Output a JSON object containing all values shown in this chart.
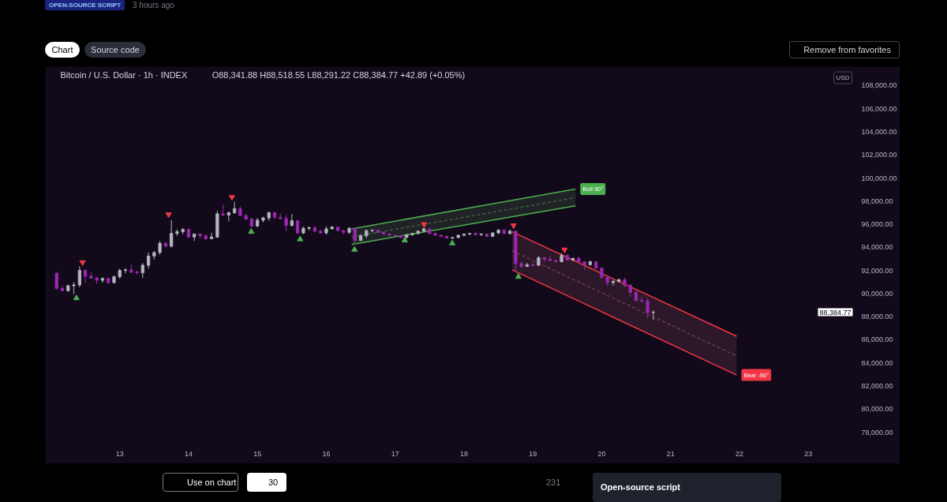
{
  "chart_data": {
    "type": "candlestick",
    "title": "Bitcoin / U.S. Dollar · 1h · INDEX",
    "subtitle": "O88,341.88 H88,518.55 L88,291.22 C88,384.77 +42.89 (+0.05%)",
    "xlim": [
      11.92,
      23.68
    ],
    "ylim": [
      76770,
      109640
    ],
    "xticks": [
      13,
      14,
      15,
      16,
      17,
      18,
      19,
      20,
      21,
      22,
      23
    ],
    "yticks": [
      {
        "value": 78000,
        "label": "78,000.00"
      },
      {
        "value": 80000,
        "label": "80,000.00"
      },
      {
        "value": 82000,
        "label": "82,000.00"
      },
      {
        "value": 84000,
        "label": "84,000.00"
      },
      {
        "value": 86000,
        "label": "86,000.00"
      },
      {
        "value": 88000,
        "label": "88,000.00"
      },
      {
        "value": 90000,
        "label": "90,000.00"
      },
      {
        "value": 92000,
        "label": "92,000.00"
      },
      {
        "value": 94000,
        "label": "94,000.00"
      },
      {
        "value": 96000,
        "label": "96,000.00"
      },
      {
        "value": 98000,
        "label": "98,000.00"
      },
      {
        "value": 100000,
        "label": "100,000.00"
      },
      {
        "value": 102000,
        "label": "102,000.00"
      },
      {
        "value": 104000,
        "label": "104,000.00"
      },
      {
        "value": 106000,
        "label": "106,000.00"
      },
      {
        "value": 108000,
        "label": "108,000.00"
      }
    ],
    "x": [
      12.083,
      12.167,
      12.25,
      12.333,
      12.417,
      12.5,
      12.583,
      12.667,
      12.75,
      12.833,
      12.917,
      13,
      13.083,
      13.167,
      13.25,
      13.333,
      13.417,
      13.5,
      13.583,
      13.667,
      13.75,
      13.833,
      13.917,
      14,
      14.083,
      14.167,
      14.25,
      14.333,
      14.417,
      14.5,
      14.583,
      14.667,
      14.75,
      14.833,
      14.917,
      15,
      15.083,
      15.167,
      15.25,
      15.333,
      15.417,
      15.5,
      15.583,
      15.667,
      15.75,
      15.833,
      15.917,
      16,
      16.083,
      16.167,
      16.25,
      16.333,
      16.417,
      16.5,
      16.583,
      16.667,
      16.75,
      16.833,
      16.917,
      17,
      17.083,
      17.167,
      17.25,
      17.333,
      17.417,
      17.5,
      17.583,
      17.667,
      17.75,
      17.833,
      17.917,
      18,
      18.083,
      18.167,
      18.25,
      18.333,
      18.417,
      18.5,
      18.583,
      18.667,
      18.75,
      18.833,
      18.917,
      19,
      19.083,
      19.167,
      19.25,
      19.333,
      19.417,
      19.5,
      19.583,
      19.667,
      19.75,
      19.833,
      19.917,
      20,
      20.083,
      20.167,
      20.25,
      20.333,
      20.417,
      20.5,
      20.583,
      20.667,
      20.75
    ],
    "ohlc": [
      [
        91750,
        91900,
        90330,
        90450
      ],
      [
        90450,
        90650,
        90200,
        90250
      ],
      [
        90250,
        90750,
        90150,
        90680
      ],
      [
        90680,
        91000,
        89950,
        90750
      ],
      [
        90750,
        92350,
        90550,
        92000
      ],
      [
        92000,
        92100,
        90900,
        91500
      ],
      [
        91500,
        91850,
        91250,
        91350
      ],
      [
        91350,
        91450,
        90850,
        91150
      ],
      [
        91150,
        91400,
        90950,
        91300
      ],
      [
        91300,
        91400,
        90850,
        90950
      ],
      [
        90950,
        91550,
        90850,
        91450
      ],
      [
        91450,
        92150,
        91300,
        92000
      ],
      [
        92000,
        92200,
        91750,
        92050
      ],
      [
        92050,
        92500,
        91800,
        91850
      ],
      [
        91850,
        92000,
        91650,
        91800
      ],
      [
        91800,
        92650,
        91350,
        92450
      ],
      [
        92450,
        93550,
        92150,
        93250
      ],
      [
        93250,
        93700,
        92950,
        93550
      ],
      [
        93550,
        94550,
        93350,
        94350
      ],
      [
        94350,
        94450,
        93950,
        94100
      ],
      [
        94100,
        96350,
        94000,
        95200
      ],
      [
        95200,
        95550,
        95000,
        95350
      ],
      [
        95350,
        95650,
        95150,
        95550
      ],
      [
        95550,
        95650,
        94800,
        94900
      ],
      [
        94900,
        95200,
        94550,
        95150
      ],
      [
        95150,
        95200,
        94750,
        95000
      ],
      [
        95000,
        95100,
        94650,
        94750
      ],
      [
        94750,
        95250,
        94700,
        94900
      ],
      [
        94900,
        97150,
        94800,
        96900
      ],
      [
        96900,
        97700,
        96700,
        96800
      ],
      [
        96800,
        97100,
        96250,
        97000
      ],
      [
        97000,
        97950,
        96900,
        97350
      ],
      [
        97350,
        97550,
        96700,
        96750
      ],
      [
        96750,
        96900,
        96350,
        96450
      ],
      [
        96450,
        96550,
        95700,
        95850
      ],
      [
        95850,
        96550,
        95750,
        96350
      ],
      [
        96350,
        96650,
        96150,
        96550
      ],
      [
        96550,
        97100,
        96300,
        97000
      ],
      [
        97000,
        97050,
        96450,
        96600
      ],
      [
        96600,
        96950,
        96400,
        96500
      ],
      [
        96500,
        96800,
        95400,
        95900
      ],
      [
        95900,
        96900,
        95800,
        96300
      ],
      [
        96300,
        96350,
        95150,
        95250
      ],
      [
        95250,
        95800,
        95150,
        95650
      ],
      [
        95650,
        95800,
        95450,
        95700
      ],
      [
        95700,
        95850,
        95300,
        95400
      ],
      [
        95400,
        95500,
        95150,
        95250
      ],
      [
        95250,
        95800,
        95100,
        95600
      ],
      [
        95600,
        95850,
        95550,
        95750
      ],
      [
        95750,
        95800,
        95400,
        95450
      ],
      [
        95450,
        95500,
        95150,
        95300
      ],
      [
        95300,
        95750,
        95150,
        95650
      ],
      [
        95650,
        95700,
        94300,
        94600
      ],
      [
        94600,
        95150,
        94550,
        95000
      ],
      [
        95000,
        95550,
        94800,
        95450
      ],
      [
        95450,
        95550,
        95300,
        95480
      ],
      [
        95480,
        95500,
        95200,
        95300
      ],
      [
        95300,
        95350,
        95100,
        95150
      ],
      [
        95150,
        95200,
        95000,
        95050
      ],
      [
        95050,
        95100,
        94900,
        95000
      ],
      [
        95000,
        95050,
        94800,
        94850
      ],
      [
        94850,
        95150,
        94800,
        95100
      ],
      [
        95100,
        95250,
        95000,
        95200
      ],
      [
        95200,
        95450,
        95100,
        95400
      ],
      [
        95400,
        95700,
        95300,
        95600
      ],
      [
        95600,
        95650,
        95150,
        95200
      ],
      [
        95200,
        95250,
        95000,
        95050
      ],
      [
        95050,
        95100,
        94900,
        94950
      ],
      [
        94950,
        95000,
        94750,
        94800
      ],
      [
        94800,
        94900,
        94700,
        94850
      ],
      [
        94850,
        95100,
        94800,
        95050
      ],
      [
        95050,
        95200,
        94950,
        95150
      ],
      [
        95150,
        95250,
        95050,
        95200
      ],
      [
        95200,
        95300,
        95000,
        95100
      ],
      [
        95100,
        95200,
        95000,
        95150
      ],
      [
        95150,
        95200,
        94900,
        94950
      ],
      [
        94950,
        95300,
        94900,
        95250
      ],
      [
        95250,
        95550,
        95150,
        95500
      ],
      [
        95500,
        95550,
        95150,
        95200
      ],
      [
        95200,
        95530,
        95100,
        95400
      ],
      [
        95400,
        95450,
        91950,
        92600
      ],
      [
        92600,
        92750,
        92200,
        92350
      ],
      [
        92350,
        92650,
        92300,
        92500
      ],
      [
        92500,
        92600,
        92300,
        92450
      ],
      [
        92450,
        93250,
        92400,
        93100
      ],
      [
        93100,
        93150,
        92750,
        92950
      ],
      [
        92950,
        93200,
        92800,
        92850
      ],
      [
        92850,
        92950,
        92700,
        92750
      ],
      [
        92750,
        93500,
        92700,
        93300
      ],
      [
        93300,
        93400,
        92850,
        92900
      ],
      [
        92900,
        93100,
        92800,
        93050
      ],
      [
        93050,
        93200,
        92700,
        92750
      ],
      [
        92750,
        92800,
        92050,
        92500
      ],
      [
        92500,
        92850,
        92400,
        92750
      ],
      [
        92750,
        92800,
        92150,
        92200
      ],
      [
        92200,
        92250,
        91300,
        91400
      ],
      [
        91400,
        91500,
        90650,
        90950
      ],
      [
        90950,
        91150,
        90700,
        91050
      ],
      [
        91050,
        91300,
        90950,
        91200
      ],
      [
        91200,
        91350,
        90550,
        90700
      ],
      [
        90700,
        90850,
        89750,
        90100
      ],
      [
        90100,
        90300,
        89300,
        89400
      ],
      [
        89400,
        89700,
        89200,
        89350
      ],
      [
        89350,
        89600,
        87850,
        88350
      ],
      [
        88350,
        88550,
        87700,
        88384.77
      ]
    ],
    "colors": [
      "#9c27b0",
      "#9c27b0",
      "#b2b5be",
      "#b2b5be",
      "#b2b5be",
      "#9c27b0",
      "#9c27b0",
      "#9c27b0",
      "#b2b5be",
      "#9c27b0",
      "#b2b5be",
      "#b2b5be",
      "#b2b5be",
      "#9c27b0",
      "#9c27b0",
      "#b2b5be",
      "#b2b5be",
      "#b2b5be",
      "#b2b5be",
      "#9c27b0",
      "#b2b5be",
      "#b2b5be",
      "#b2b5be",
      "#9c27b0",
      "#b2b5be",
      "#9c27b0",
      "#9c27b0",
      "#b2b5be",
      "#b2b5be",
      "#9c27b0",
      "#b2b5be",
      "#b2b5be",
      "#9c27b0",
      "#9c27b0",
      "#9c27b0",
      "#b2b5be",
      "#b2b5be",
      "#b2b5be",
      "#9c27b0",
      "#9c27b0",
      "#9c27b0",
      "#b2b5be",
      "#9c27b0",
      "#b2b5be",
      "#b2b5be",
      "#9c27b0",
      "#9c27b0",
      "#b2b5be",
      "#b2b5be",
      "#9c27b0",
      "#9c27b0",
      "#b2b5be",
      "#9c27b0",
      "#b2b5be",
      "#b2b5be",
      "#b2b5be",
      "#9c27b0",
      "#9c27b0",
      "#9c27b0",
      "#9c27b0",
      "#9c27b0",
      "#b2b5be",
      "#b2b5be",
      "#b2b5be",
      "#b2b5be",
      "#9c27b0",
      "#9c27b0",
      "#9c27b0",
      "#9c27b0",
      "#b2b5be",
      "#b2b5be",
      "#b2b5be",
      "#b2b5be",
      "#9c27b0",
      "#b2b5be",
      "#9c27b0",
      "#b2b5be",
      "#b2b5be",
      "#9c27b0",
      "#b2b5be",
      "#9c27b0",
      "#9c27b0",
      "#b2b5be",
      "#9c27b0",
      "#b2b5be",
      "#9c27b0",
      "#9c27b0",
      "#9c27b0",
      "#b2b5be",
      "#9c27b0",
      "#b2b5be",
      "#9c27b0",
      "#9c27b0",
      "#b2b5be",
      "#9c27b0",
      "#9c27b0",
      "#9c27b0",
      "#b2b5be",
      "#b2b5be",
      "#9c27b0",
      "#9c27b0",
      "#9c27b0",
      "#9c27b0",
      "#9c27b0",
      "#b2b5be"
    ],
    "series": [
      {
        "type": "line",
        "line_style": "dashed",
        "color": "#3f5f42",
        "x": [
          16.37,
          19.62
        ],
        "values": [
          94900,
          98300
        ],
        "lower": [
          94250,
          97600
        ],
        "upper": [
          95600,
          99050
        ]
      },
      {
        "type": "line",
        "color": "#4caf50",
        "x": [
          16.37,
          19.62
        ],
        "values": [
          95600,
          99050
        ]
      },
      {
        "type": "line",
        "color": "#4caf50",
        "x": [
          16.37,
          19.62
        ],
        "values": [
          94250,
          97600
        ]
      },
      {
        "type": "line",
        "line_style": "dashed",
        "color": "#6e3a4c",
        "x": [
          18.7,
          21.96
        ],
        "values": [
          93700,
          84600
        ],
        "lower": [
          92050,
          82950
        ],
        "upper": [
          95350,
          86300
        ]
      },
      {
        "type": "line",
        "color": "#f23645",
        "x": [
          18.7,
          21.96
        ],
        "values": [
          95350,
          86300
        ]
      },
      {
        "type": "line",
        "color": "#f23645",
        "x": [
          18.7,
          21.96
        ],
        "values": [
          92050,
          82950
        ]
      },
      {
        "type": "scatter",
        "marker": "triangle",
        "color": "#4caf50",
        "x": [
          12.37,
          14.91,
          15.62,
          16.41,
          17.14,
          17.83,
          18.79
        ],
        "values": [
          89600,
          95350,
          94700,
          93800,
          94600,
          94350,
          91450
        ]
      },
      {
        "type": "scatter",
        "marker": "triangle",
        "color": "#f23645",
        "x": [
          12.46,
          13.71,
          14.63,
          17.42,
          18.72,
          19.46
        ],
        "values": [
          92700,
          96850,
          98350,
          96000,
          95900,
          93800
        ]
      }
    ],
    "annotations": [
      "OPEN-SOURCE SCRIPT",
      "3 hours ago",
      "Chart",
      "Source code",
      "Remove from favorites",
      "USD",
      "88,384.77",
      {
        "text": "Bull 90°",
        "x": 19.62,
        "y": 99050
      },
      {
        "text": "Bear -90°",
        "x": 21.96,
        "y": 82950
      },
      "Use on chart",
      "30",
      "231",
      "Open-source script"
    ]
  }
}
